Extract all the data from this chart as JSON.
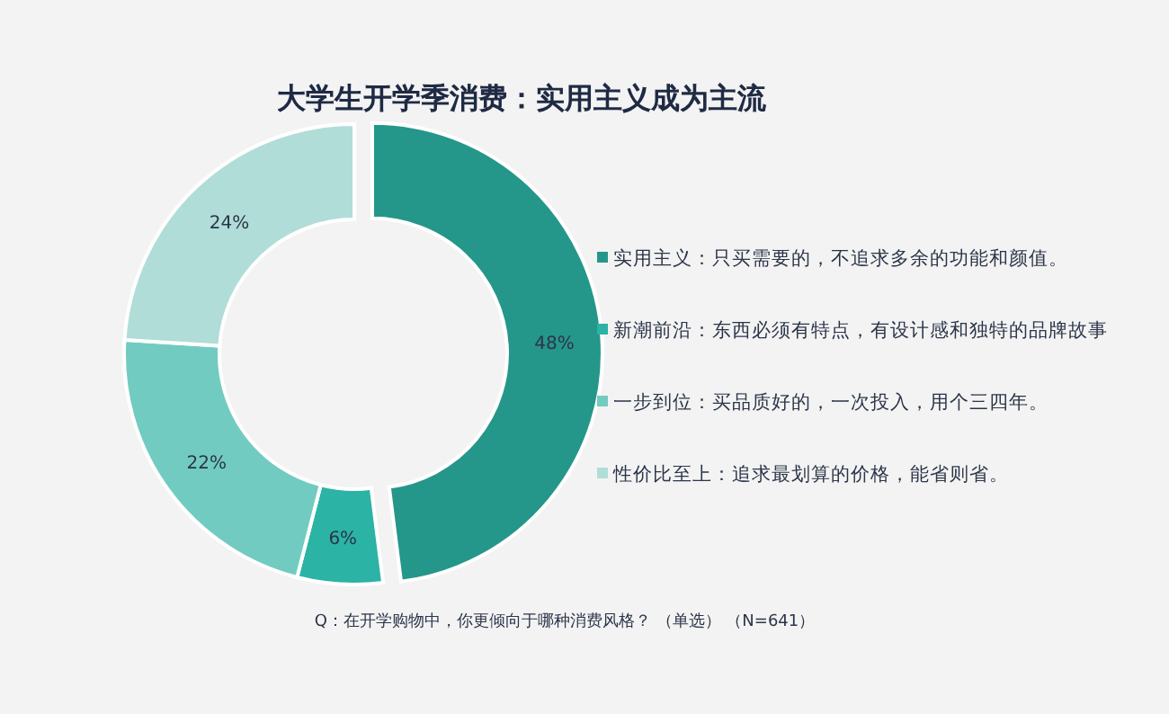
{
  "chart_data": {
    "type": "donut",
    "title": "大学生开学季消费：实用主义成为主流",
    "categories": [
      "实用主义：只买需要的，不追求多余的功能和颜值。",
      "新潮前沿：东西必须有特点，有设计感和独特的品牌故事",
      "一步到位：买品质好的，一次投入，用个三四年。",
      "性价比至上：追求最划算的价格，能省则省。"
    ],
    "values": [
      48,
      6,
      22,
      24
    ],
    "value_labels": [
      "48%",
      "6%",
      "22%",
      "24%"
    ],
    "colors": [
      "#25968a",
      "#2bb3a5",
      "#72cbc1",
      "#b0ddd8"
    ],
    "legend": "right",
    "annotations": [
      "Q：在开学购物中，你更倾向于哪种消费风格？ （单选） （N=641）"
    ]
  }
}
